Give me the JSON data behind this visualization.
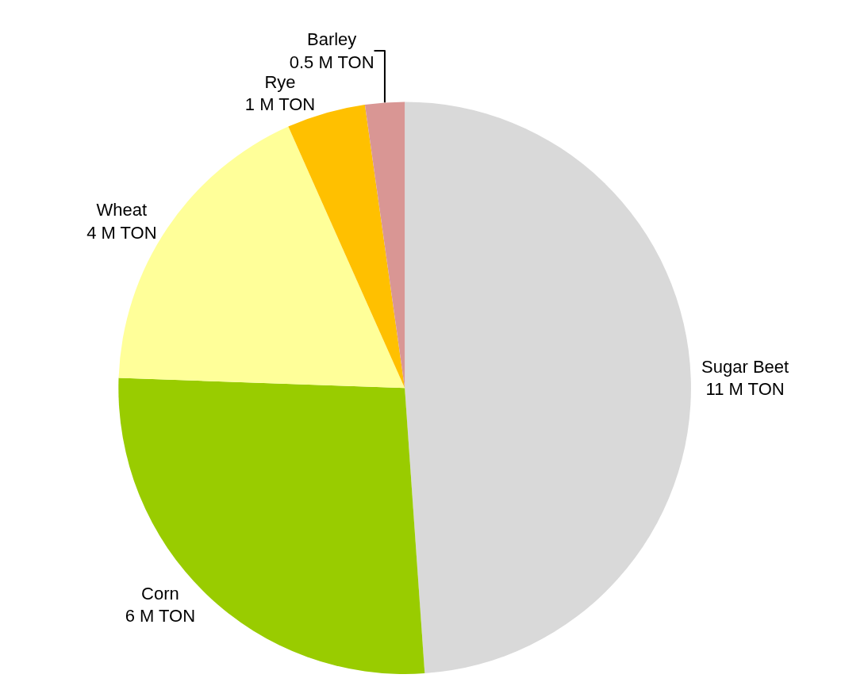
{
  "chart_data": {
    "type": "pie",
    "categories": [
      "Sugar Beet",
      "Corn",
      "Wheat",
      "Rye",
      "Barley"
    ],
    "values": [
      11,
      6,
      4,
      1,
      0.5
    ],
    "value_labels": [
      "11 M TON",
      "6 M TON",
      "4 M TON",
      "1 M TON",
      "0.5 M TON"
    ],
    "colors": [
      "#d9d9d9",
      "#99cc00",
      "#ffff99",
      "#ffc000",
      "#d99694"
    ],
    "legend": false
  }
}
